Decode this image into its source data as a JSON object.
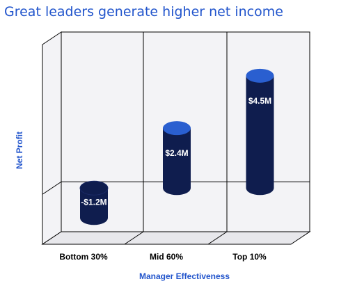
{
  "chart_data": {
    "type": "bar",
    "title": "Great leaders generate higher net income",
    "xlabel": "Manager Effectiveness",
    "ylabel": "Net Profit",
    "categories": [
      "Bottom 30%",
      "Mid 60%",
      "Top 10%"
    ],
    "values": [
      -1.2,
      2.4,
      4.5
    ],
    "data_labels": [
      "-$1.2M",
      "$2.4M",
      "$4.5M"
    ],
    "ylim": [
      -2.0,
      6.0
    ],
    "grid": true,
    "bar_style": "3d-cylinder",
    "colors": {
      "bar_body": "#0f1d4e",
      "bar_top": "#2a5fd0",
      "title": "#2255cc",
      "axis_label": "#2255cc",
      "panel": "#f3f3f6",
      "grid": "#000000"
    }
  }
}
